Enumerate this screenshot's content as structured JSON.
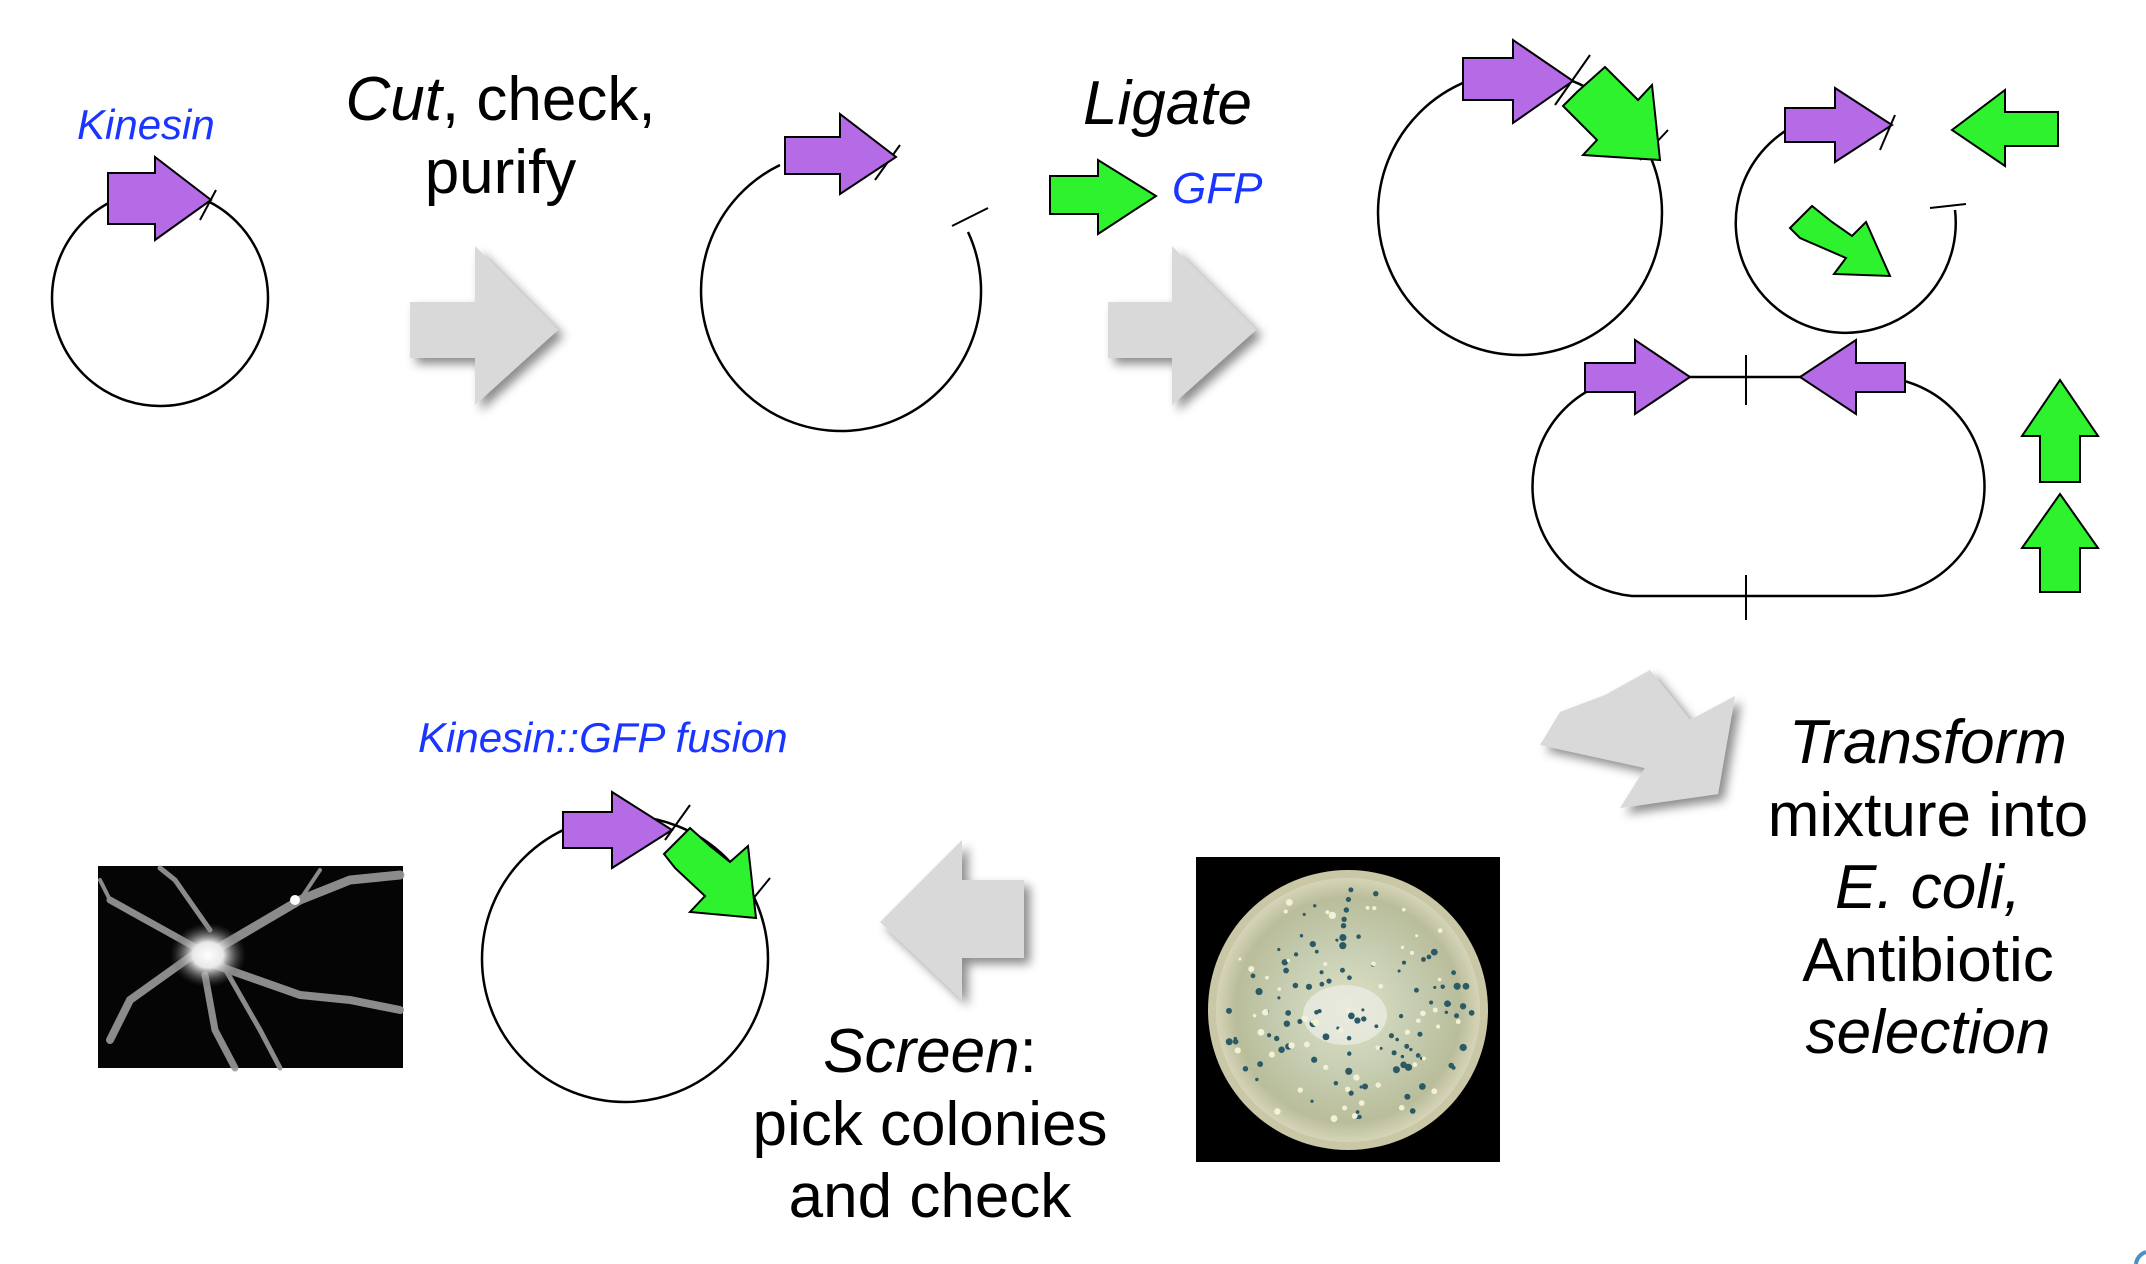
{
  "labels": {
    "kinesin": "Kinesin",
    "gfp": "GFP",
    "fusion": "Kinesin::GFP fusion"
  },
  "steps": {
    "cut": {
      "verb": "Cut",
      "rest": ", check,",
      "line2": "purify"
    },
    "ligate": {
      "verb": "Ligate"
    },
    "transform": {
      "verb": "Transform",
      "line2": "mixture into",
      "line3": "E. coli,",
      "line4": "Antibiotic",
      "line5": "selection"
    },
    "screen": {
      "verb": "Screen",
      "colon": ":",
      "line2": "pick colonies",
      "line3": "and check"
    }
  },
  "colors": {
    "kinesin_arrow": "#b56ae6",
    "gfp_arrow": "#2ff22f",
    "label_blue": "#1a35ff",
    "process_arrow": "#d9d9d9"
  }
}
